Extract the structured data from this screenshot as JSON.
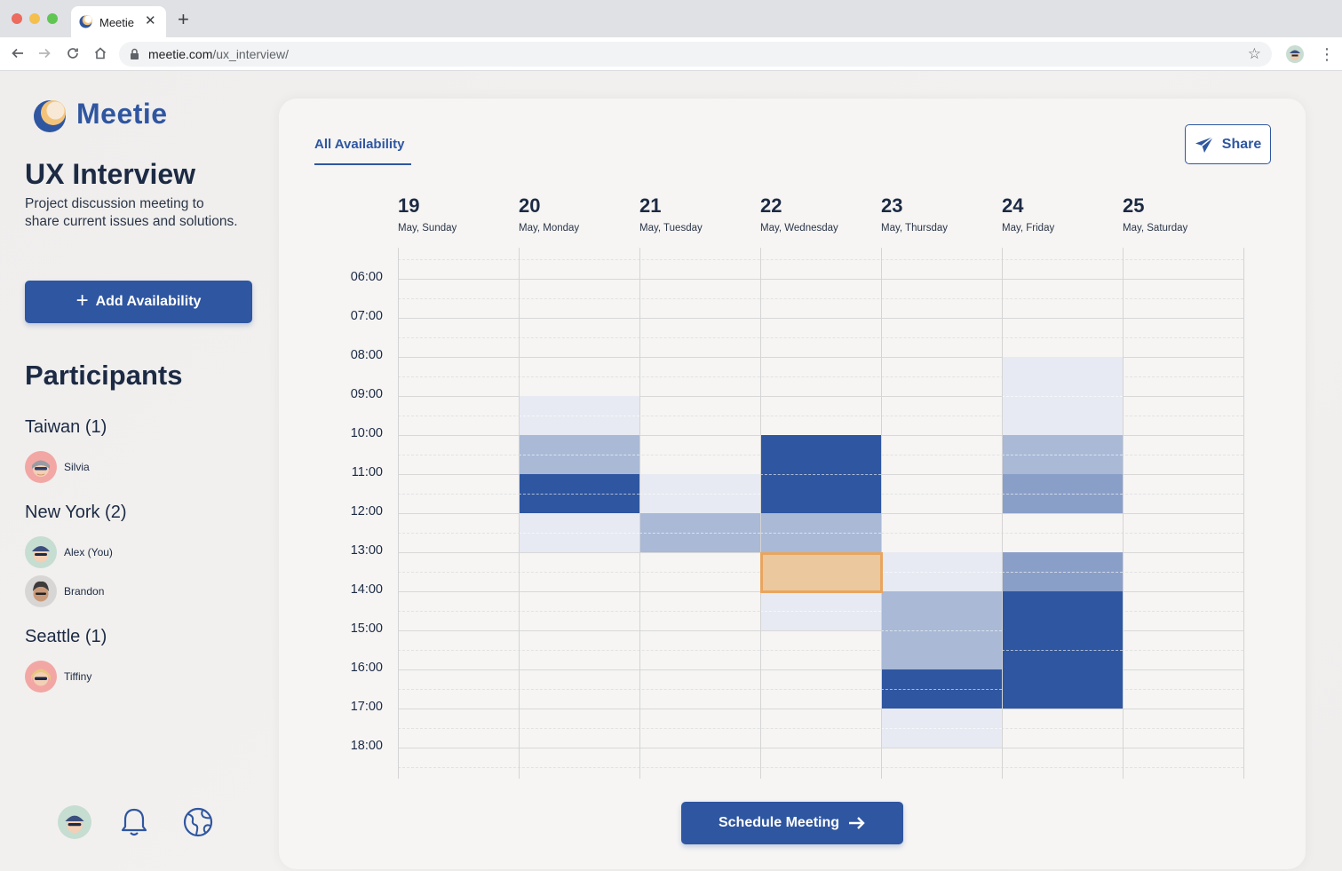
{
  "browser": {
    "tab_title": "Meetie",
    "url_host": "meetie.com",
    "url_path": "/ux_interview/"
  },
  "app": {
    "brand": "Meetie",
    "meeting_title": "UX Interview",
    "meeting_description": "Project discussion meeting to share current issues and solutions.",
    "add_availability_label": "Add Availability",
    "participants_title": "Participants",
    "groups": [
      {
        "title": "Taiwan (1)",
        "people": [
          {
            "name": "Silvia"
          }
        ]
      },
      {
        "title": "New York (2)",
        "people": [
          {
            "name": "Alex (You)"
          },
          {
            "name": "Brandon"
          }
        ]
      },
      {
        "title": "Seattle (1)",
        "people": [
          {
            "name": "Tiffiny"
          }
        ]
      }
    ]
  },
  "calendar": {
    "tab_label": "All Availability",
    "share_label": "Share",
    "schedule_label": "Schedule Meeting",
    "days": [
      {
        "num": "19",
        "name": "May, Sunday"
      },
      {
        "num": "20",
        "name": "May, Monday"
      },
      {
        "num": "21",
        "name": "May, Tuesday"
      },
      {
        "num": "22",
        "name": "May, Wednesday"
      },
      {
        "num": "23",
        "name": "May, Thursday"
      },
      {
        "num": "24",
        "name": "May, Friday"
      },
      {
        "num": "25",
        "name": "May, Saturday"
      }
    ],
    "times": [
      "06:00",
      "07:00",
      "08:00",
      "09:00",
      "10:00",
      "11:00",
      "12:00",
      "13:00",
      "14:00",
      "15:00",
      "16:00",
      "17:00",
      "18:00"
    ],
    "availability_blocks": [
      {
        "day": 1,
        "start": 9,
        "end": 10,
        "level": 1
      },
      {
        "day": 1,
        "start": 10,
        "end": 11,
        "level": 2
      },
      {
        "day": 1,
        "start": 11,
        "end": 12,
        "level": 4
      },
      {
        "day": 1,
        "start": 12,
        "end": 13,
        "level": 1
      },
      {
        "day": 2,
        "start": 11,
        "end": 12,
        "level": 1
      },
      {
        "day": 2,
        "start": 12,
        "end": 13,
        "level": 2
      },
      {
        "day": 3,
        "start": 10,
        "end": 12,
        "level": 4
      },
      {
        "day": 3,
        "start": 12,
        "end": 13,
        "level": 2
      },
      {
        "day": 3,
        "start": 14,
        "end": 15,
        "level": 1
      },
      {
        "day": 4,
        "start": 13,
        "end": 14,
        "level": 1
      },
      {
        "day": 4,
        "start": 14,
        "end": 16,
        "level": 2
      },
      {
        "day": 4,
        "start": 16,
        "end": 17,
        "level": 4
      },
      {
        "day": 4,
        "start": 17,
        "end": 18,
        "level": 1
      },
      {
        "day": 5,
        "start": 8,
        "end": 10,
        "level": 1
      },
      {
        "day": 5,
        "start": 10,
        "end": 11,
        "level": 2
      },
      {
        "day": 5,
        "start": 11,
        "end": 12,
        "level": 3
      },
      {
        "day": 5,
        "start": 13,
        "end": 14,
        "level": 3
      },
      {
        "day": 5,
        "start": 14,
        "end": 17,
        "level": 4
      }
    ],
    "selected_slot": {
      "day": 3,
      "start": 13,
      "end": 14
    },
    "level_colors": [
      "#f2f1f0",
      "#e7eaf2",
      "#a9b9d6",
      "#8a9fc8",
      "#2f56a0"
    ],
    "selection_color": "#ebc89e",
    "selection_border_color": "#e9a55e"
  },
  "colors": {
    "accent": "#2f56a0",
    "text": "#1c2a44"
  }
}
